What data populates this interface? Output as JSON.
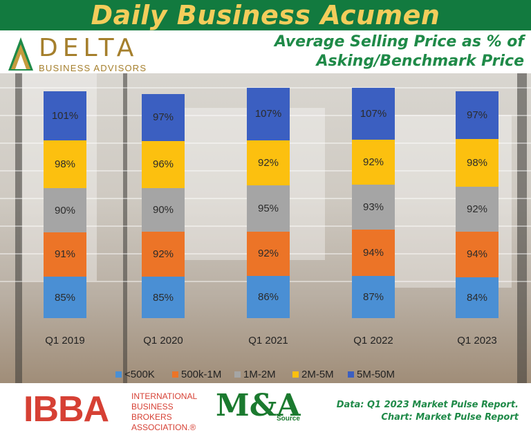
{
  "banner": {
    "title": "Daily Business Acumen"
  },
  "logo": {
    "word": "DELTA",
    "sub": "BUSINESS ADVISORS"
  },
  "chart_data": {
    "type": "bar",
    "stacked": true,
    "title_lines": [
      "Average Selling Price as % of",
      "Asking/Benchmark Price"
    ],
    "categories": [
      "Q1 2019",
      "Q1 2020",
      "Q1 2021",
      "Q1 2022",
      "Q1 2023"
    ],
    "series": [
      {
        "name": "<500K",
        "color": "#4a8fd4",
        "values": [
          85,
          85,
          86,
          87,
          84
        ]
      },
      {
        "name": "500k-1M",
        "color": "#ec7427",
        "values": [
          91,
          92,
          92,
          94,
          94
        ]
      },
      {
        "name": "1M-2M",
        "color": "#a5a5a5",
        "values": [
          90,
          90,
          95,
          93,
          92
        ]
      },
      {
        "name": "2M-5M",
        "color": "#fcc00f",
        "values": [
          98,
          96,
          92,
          92,
          98
        ]
      },
      {
        "name": "5M-50M",
        "color": "#3b5fc1",
        "values": [
          101,
          97,
          107,
          107,
          97
        ]
      }
    ],
    "value_suffix": "%",
    "ylim": [
      0,
      520
    ],
    "grid": false,
    "legend_position": "bottom"
  },
  "footer": {
    "ibba_logo": "IBBA",
    "ibba_name": "INTERNATIONAL BUSINESS BROKERS ASSOCIATION.®",
    "ma_logo": "M&A",
    "ma_source": "Source",
    "credit_lines": [
      "Data: Q1 2023 Market Pulse Report.",
      "Chart: Market Pulse Report"
    ]
  }
}
